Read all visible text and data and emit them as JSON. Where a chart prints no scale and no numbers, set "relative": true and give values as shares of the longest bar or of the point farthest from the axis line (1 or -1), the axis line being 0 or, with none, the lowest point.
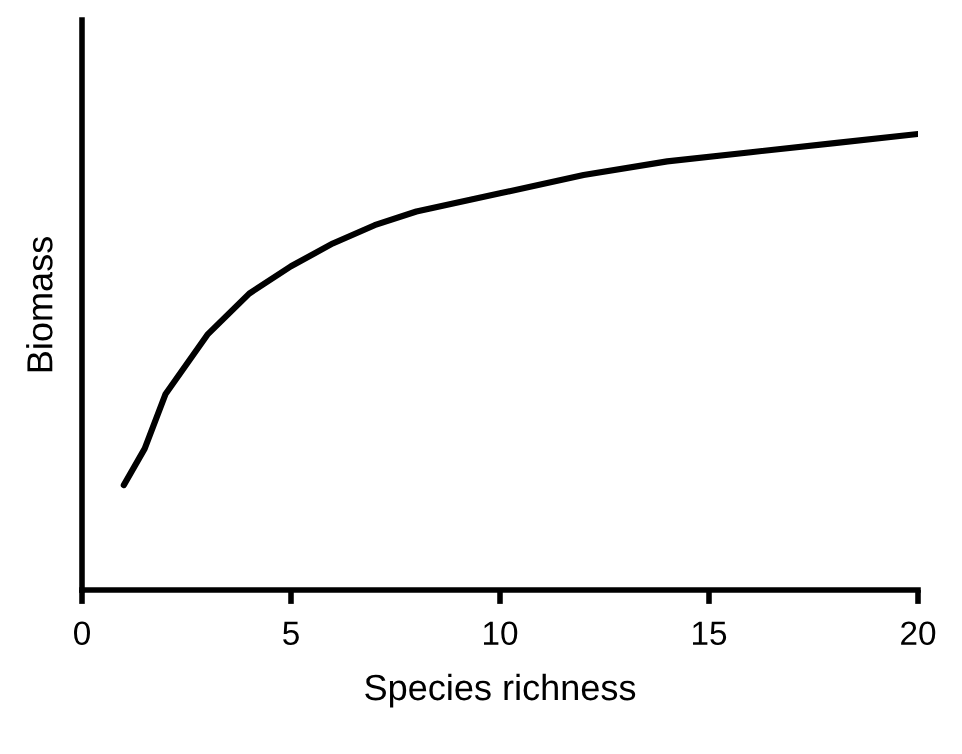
{
  "chart_data": {
    "type": "line",
    "xlabel": "Species richness",
    "ylabel": "Biomass",
    "relative": true,
    "series": [
      {
        "color": "#000000",
        "x": [
          1,
          1.5,
          2,
          3,
          4,
          5,
          6,
          7,
          8,
          10,
          12,
          14,
          16,
          18,
          20
        ],
        "values": [
          0.23,
          0.31,
          0.43,
          0.56,
          0.65,
          0.71,
          0.76,
          0.8,
          0.83,
          0.87,
          0.91,
          0.94,
          0.96,
          0.98,
          1.0
        ]
      }
    ],
    "xlim": [
      0,
      20
    ],
    "xticks": [
      0,
      5,
      10,
      15,
      20
    ],
    "grid": false,
    "marker": "none",
    "line_style": "solid"
  }
}
